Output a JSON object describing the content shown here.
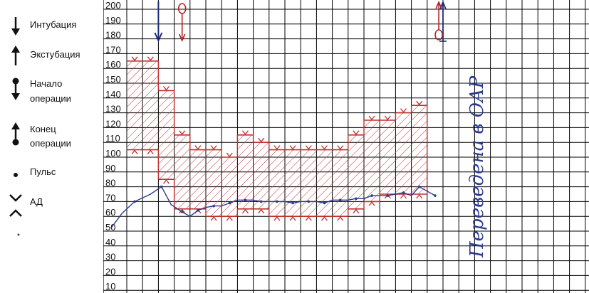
{
  "legend": {
    "items": [
      {
        "icon": "arrow-down-icon",
        "label": "Интубация"
      },
      {
        "icon": "arrow-up-icon",
        "label": "Экстубация"
      },
      {
        "icon": "operation-start-icon",
        "label": "Начало",
        "label2": "операции"
      },
      {
        "icon": "operation-end-icon",
        "label": "Конец",
        "label2": "операции"
      },
      {
        "icon": "pulse-dot-icon",
        "label": "Пульс"
      },
      {
        "icon": "bp-chevron-icon",
        "label": "АД"
      }
    ]
  },
  "colors": {
    "pulse": "#2a3a8c",
    "bp": "#c03030",
    "grid": "#000000"
  },
  "annotation": {
    "text": "Переведена в ОАР"
  },
  "chart_data": {
    "type": "line",
    "yticks": [
      200,
      190,
      180,
      170,
      160,
      150,
      140,
      130,
      120,
      110,
      100,
      90,
      80,
      70,
      60,
      50,
      40,
      30,
      20,
      10
    ],
    "ylim": [
      10,
      200
    ],
    "xlim": [
      0,
      22
    ],
    "markers": [
      {
        "type": "intubation",
        "x": 2.0
      },
      {
        "type": "operation-start",
        "x": 3.5
      },
      {
        "type": "extubation",
        "x": 20.0
      },
      {
        "type": "operation-end",
        "x": 20.5
      }
    ],
    "series": [
      {
        "kind": "bp_band",
        "systolic": [
          165,
          165,
          145,
          115,
          105,
          105,
          100,
          115,
          110,
          105,
          105,
          105,
          105,
          105,
          115,
          125,
          125,
          130,
          135
        ],
        "diastolic": [
          105,
          105,
          85,
          65,
          65,
          60,
          60,
          65,
          65,
          60,
          60,
          60,
          60,
          60,
          65,
          70,
          75,
          75,
          75
        ]
      },
      {
        "kind": "pulse",
        "x": [
          -1.0,
          -0.3,
          0.5,
          1.5,
          2.2,
          2.8,
          3.5,
          4.0,
          4.5,
          5.0,
          5.5,
          6.0,
          6.5,
          7.0,
          7.5,
          8.0,
          8.5,
          9.0,
          9.5,
          10.0,
          10.5,
          11.0,
          11.5,
          12.0,
          12.5,
          13.0,
          13.5,
          14.0,
          14.5,
          15.0,
          15.5,
          16.0,
          16.5,
          17.0,
          17.5,
          18.0,
          18.5,
          19.0,
          19.5
        ],
        "y": [
          52,
          62,
          70,
          75,
          80,
          68,
          63,
          60,
          64,
          66,
          67,
          67,
          69,
          71,
          71,
          71,
          70,
          70,
          70,
          70,
          69,
          70,
          70,
          70,
          69,
          71,
          71,
          71,
          72,
          72,
          74,
          74,
          74,
          75,
          76,
          74,
          80,
          77,
          74
        ]
      }
    ]
  }
}
